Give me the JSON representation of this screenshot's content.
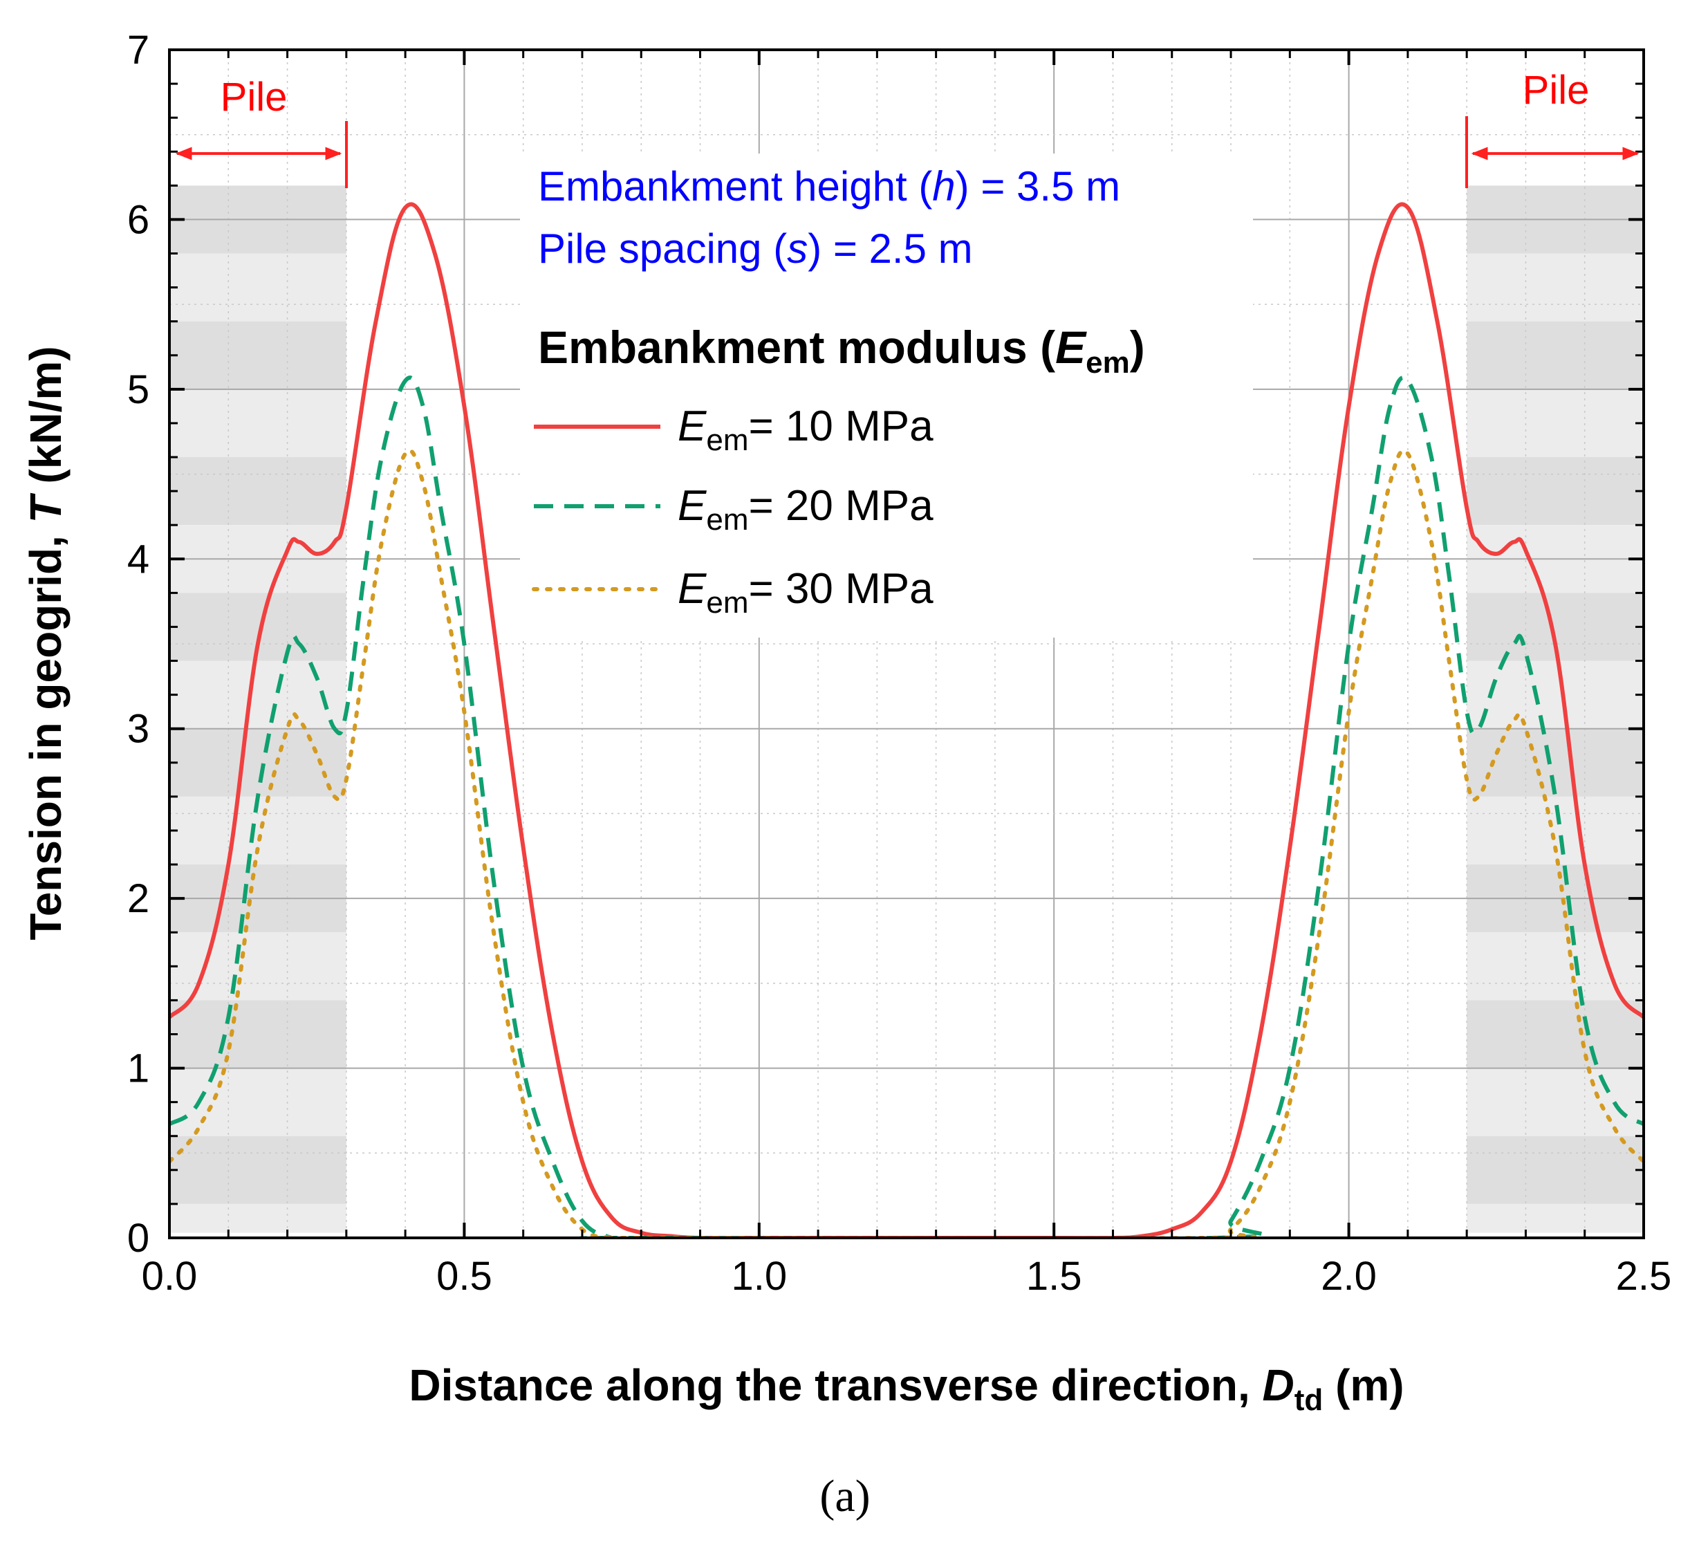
{
  "chart_data": {
    "type": "line",
    "xlabel": {
      "prefix": "Distance along the transverse direction, ",
      "var": "D",
      "sub": "td",
      "suffix": " (m)"
    },
    "ylabel": {
      "prefix": "Tension in geogrid, ",
      "var": "T",
      "suffix": " (kN/m)"
    },
    "xlim": [
      0.0,
      2.5
    ],
    "ylim": [
      0,
      7
    ],
    "xticks": [
      "0.0",
      "0.5",
      "1.0",
      "1.5",
      "2.0",
      "2.5"
    ],
    "xtick_values": [
      0.0,
      0.5,
      1.0,
      1.5,
      2.0,
      2.5
    ],
    "yticks": [
      "0",
      "1",
      "2",
      "3",
      "4",
      "5",
      "6",
      "7"
    ],
    "ytick_values": [
      0,
      1,
      2,
      3,
      4,
      5,
      6,
      7
    ],
    "grid": true,
    "pile_regions": [
      {
        "label": "Pile",
        "x_range": [
          0.0,
          0.3
        ],
        "shade_top": 6.2
      },
      {
        "label": "Pile",
        "x_range": [
          2.2,
          2.5
        ],
        "shade_top": 6.2
      }
    ],
    "annotations": [
      "Embankment height (h) = 3.5 m",
      "Pile spacing (s) = 2.5 m"
    ],
    "annotation_parts": [
      {
        "prefix": "Embankment height (",
        "var": "h",
        "suffix": ") = 3.5 m"
      },
      {
        "prefix": "Pile spacing (",
        "var": "s",
        "suffix": ") = 2.5 m"
      }
    ],
    "legend": {
      "title": {
        "prefix": "Embankment modulus (",
        "var": "E",
        "sub": "em",
        "suffix": ")"
      },
      "position": "upper-center"
    },
    "series": [
      {
        "name": "Eem= 10 MPa",
        "var": "E",
        "sub": "em",
        "value_text": "= 10 MPa",
        "color": "#f04040",
        "dash": "solid",
        "x": [
          0.0,
          0.05,
          0.1,
          0.15,
          0.2,
          0.22,
          0.25,
          0.28,
          0.3,
          0.35,
          0.4,
          0.45,
          0.5,
          0.55,
          0.6,
          0.65,
          0.7,
          0.75,
          0.8,
          0.85,
          0.9,
          1.0,
          1.25,
          1.5,
          1.6,
          1.65,
          1.7,
          1.75,
          1.8,
          1.85,
          1.9,
          1.95,
          2.0,
          2.05,
          2.1,
          2.15,
          2.2,
          2.22,
          2.25,
          2.28,
          2.3,
          2.35,
          2.4,
          2.45,
          2.5
        ],
        "y": [
          1.3,
          1.5,
          2.2,
          3.5,
          4.05,
          4.1,
          4.03,
          4.1,
          4.3,
          5.4,
          6.07,
          5.8,
          4.9,
          3.6,
          2.3,
          1.2,
          0.45,
          0.12,
          0.03,
          0.01,
          0.0,
          0.0,
          0.0,
          0.0,
          0.0,
          0.01,
          0.05,
          0.15,
          0.45,
          1.2,
          2.3,
          3.6,
          4.9,
          5.8,
          6.07,
          5.4,
          4.3,
          4.1,
          4.03,
          4.1,
          4.05,
          3.5,
          2.2,
          1.5,
          1.3
        ]
      },
      {
        "name": "Eem= 20 MPa",
        "var": "E",
        "sub": "em",
        "value_text": "= 20 MPa",
        "color": "#10a070",
        "dash": "dashed",
        "x": [
          0.0,
          0.05,
          0.1,
          0.15,
          0.2,
          0.22,
          0.25,
          0.28,
          0.3,
          0.33,
          0.36,
          0.4,
          0.43,
          0.46,
          0.5,
          0.55,
          0.6,
          0.65,
          0.7,
          0.75,
          0.78,
          1.77,
          1.8,
          1.85,
          1.9,
          1.95,
          2.0,
          2.04,
          2.07,
          2.1,
          2.14,
          2.17,
          2.2,
          2.22,
          2.25,
          2.28,
          2.3,
          2.35,
          2.4,
          2.45,
          2.5
        ],
        "y": [
          0.67,
          0.8,
          1.3,
          2.6,
          3.45,
          3.5,
          3.3,
          3.0,
          3.1,
          3.9,
          4.6,
          5.05,
          4.9,
          4.3,
          3.5,
          2.1,
          1.0,
          0.45,
          0.1,
          0.0,
          0.0,
          0.0,
          0.1,
          0.45,
          1.0,
          2.1,
          3.5,
          4.3,
          4.9,
          5.05,
          4.6,
          3.9,
          3.1,
          3.0,
          3.3,
          3.5,
          3.45,
          2.6,
          1.3,
          0.8,
          0.67
        ]
      },
      {
        "name": "Eem= 30 MPa",
        "var": "E",
        "sub": "em",
        "value_text": "= 30 MPa",
        "color": "#d49a20",
        "dash": "dotted",
        "x": [
          0.0,
          0.05,
          0.1,
          0.15,
          0.2,
          0.22,
          0.25,
          0.28,
          0.3,
          0.33,
          0.36,
          0.4,
          0.43,
          0.46,
          0.5,
          0.55,
          0.6,
          0.65,
          0.7,
          0.75,
          0.8,
          1.75,
          1.8,
          1.85,
          1.9,
          1.95,
          2.0,
          2.04,
          2.07,
          2.1,
          2.14,
          2.17,
          2.2,
          2.22,
          2.25,
          2.28,
          2.3,
          2.35,
          2.4,
          2.45,
          2.5
        ],
        "y": [
          0.45,
          0.65,
          1.1,
          2.3,
          3.0,
          3.05,
          2.85,
          2.6,
          2.7,
          3.4,
          4.1,
          4.62,
          4.45,
          3.9,
          3.1,
          1.8,
          0.8,
          0.3,
          0.05,
          0.0,
          0.0,
          0.0,
          0.05,
          0.3,
          0.8,
          1.8,
          3.1,
          3.9,
          4.45,
          4.62,
          4.1,
          3.4,
          2.7,
          2.6,
          2.85,
          3.05,
          3.0,
          2.3,
          1.1,
          0.65,
          0.45
        ]
      }
    ],
    "caption": "(a)"
  }
}
